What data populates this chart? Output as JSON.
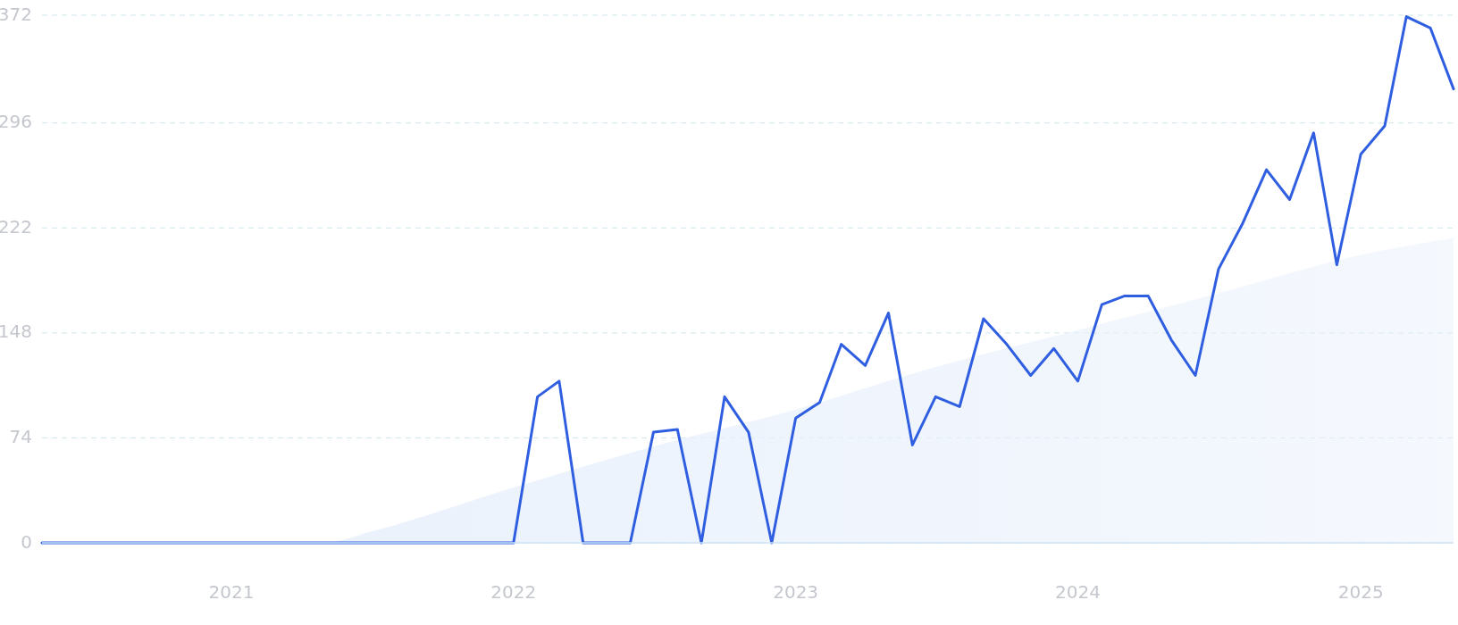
{
  "chart_data": {
    "type": "line",
    "xlim": [
      "2020-05",
      "2025-05"
    ],
    "xticks": [
      {
        "value": "2021-01",
        "label": "2021"
      },
      {
        "value": "2022-01",
        "label": "2022"
      },
      {
        "value": "2023-01",
        "label": "2023"
      },
      {
        "value": "2024-01",
        "label": "2024"
      },
      {
        "value": "2025-01",
        "label": "2025"
      }
    ],
    "ylim": [
      0,
      372
    ],
    "yticks": [
      0,
      74,
      148,
      222,
      296,
      372
    ],
    "grid": "y",
    "line_style": "solid",
    "series": [
      {
        "type": "area",
        "color": "#e8f0fc",
        "x": [
          "2020-05",
          "2021-05",
          "2021-07",
          "2022-01",
          "2022-07",
          "2023-01",
          "2023-07",
          "2024-01",
          "2024-07",
          "2025-01",
          "2025-05"
        ],
        "values": [
          0,
          0,
          8,
          39,
          68,
          94,
          124,
          150,
          176,
          203,
          215
        ]
      },
      {
        "color": "#2f5fe0",
        "x": [
          "2020-05",
          "2021-01",
          "2022-01",
          "2022-02",
          "2022-03",
          "2022-04",
          "2022-05",
          "2022-06",
          "2022-07",
          "2022-08",
          "2022-09",
          "2022-10",
          "2022-11",
          "2022-12",
          "2023-01",
          "2023-02",
          "2023-03",
          "2023-04",
          "2023-05",
          "2023-06",
          "2023-07",
          "2023-08",
          "2023-09",
          "2023-10",
          "2023-11",
          "2023-12",
          "2024-01",
          "2024-02",
          "2024-03",
          "2024-04",
          "2024-05",
          "2024-06",
          "2024-07",
          "2024-08",
          "2024-09",
          "2024-10",
          "2024-11",
          "2024-12",
          "2025-01",
          "2025-02",
          "2025-03",
          "2025-04",
          "2025-05"
        ],
        "values": [
          0,
          0,
          0,
          103,
          114,
          0,
          0,
          0,
          78,
          80,
          0,
          103,
          78,
          0,
          88,
          99,
          140,
          125,
          162,
          69,
          103,
          96,
          158,
          140,
          118,
          137,
          114,
          168,
          174,
          174,
          143,
          118,
          193,
          225,
          263,
          242,
          289,
          196,
          274,
          294,
          371,
          363,
          320
        ]
      }
    ]
  }
}
